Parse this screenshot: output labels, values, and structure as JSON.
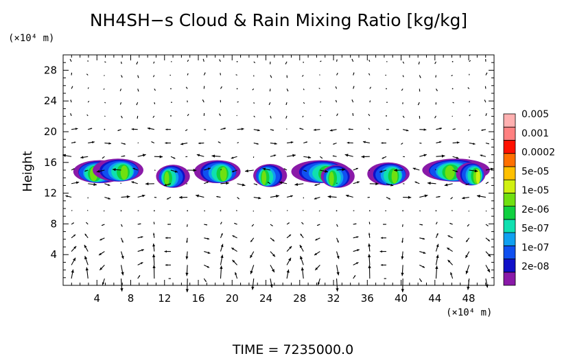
{
  "chart_data": {
    "type": "heatmap",
    "title": "NH4SH−s Cloud & Rain Mixing Ratio [kg/kg]",
    "ylabel": "Height",
    "y_unit": "(×10⁴ m)",
    "x_unit": "(×10⁴ m)",
    "xlim": [
      0,
      51
    ],
    "ylim": [
      0,
      30
    ],
    "x_ticks": [
      4,
      8,
      12,
      16,
      20,
      24,
      28,
      32,
      36,
      40,
      44,
      48
    ],
    "y_ticks": [
      4,
      8,
      12,
      16,
      20,
      24,
      28
    ],
    "footer": "TIME  =  7235000.0",
    "colorbar": {
      "colors": [
        "#8a1aa8",
        "#1010c8",
        "#1050f0",
        "#10a0f0",
        "#10e0b0",
        "#10d040",
        "#70e010",
        "#d0f010",
        "#ffc000",
        "#ff7000",
        "#ff1000",
        "#ff8080",
        "#ffb0b0"
      ],
      "labels": [
        "2e-08",
        "1e-07",
        "5e-07",
        "2e-06",
        "1e-05",
        "5e-05",
        "0.0002",
        "0.001",
        "0.005"
      ]
    },
    "cloud_band": {
      "y_bottom": 13.2,
      "y_top": 16.2
    },
    "cloud_cells": [
      {
        "x0": 1.2,
        "x1": 7.5,
        "y": 14.8,
        "peak": 6
      },
      {
        "x0": 3.5,
        "x1": 9.5,
        "y": 15.0,
        "peak": 6
      },
      {
        "x0": 11.0,
        "x1": 15.0,
        "y": 14.2,
        "peak": 6
      },
      {
        "x0": 15.5,
        "x1": 21.0,
        "y": 14.8,
        "peak": 6
      },
      {
        "x0": 22.5,
        "x1": 26.5,
        "y": 14.3,
        "peak": 6
      },
      {
        "x0": 27.0,
        "x1": 34.0,
        "y": 14.8,
        "peak": 6
      },
      {
        "x0": 30.5,
        "x1": 34.5,
        "y": 14.2,
        "peak": 6
      },
      {
        "x0": 36.0,
        "x1": 41.0,
        "y": 14.5,
        "peak": 6
      },
      {
        "x0": 42.5,
        "x1": 50.5,
        "y": 15.0,
        "peak": 6
      },
      {
        "x0": 46.5,
        "x1": 50.0,
        "y": 14.5,
        "peak": 7
      }
    ]
  }
}
